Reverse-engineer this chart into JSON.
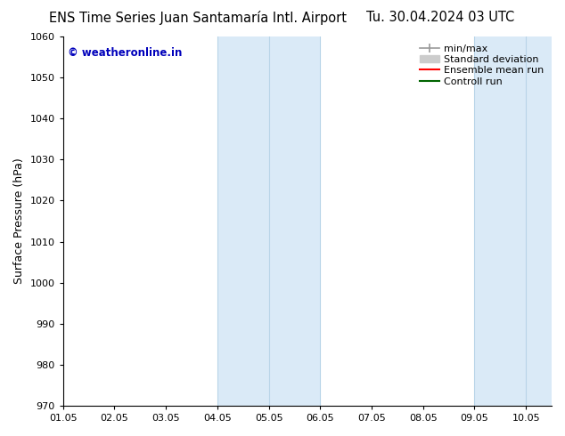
{
  "title_left": "ENS Time Series Juan Santamaría Intl. Airport",
  "title_right": "Tu. 30.04.2024 03 UTC",
  "ylabel": "Surface Pressure (hPa)",
  "ylim": [
    970,
    1060
  ],
  "yticks": [
    970,
    980,
    990,
    1000,
    1010,
    1020,
    1030,
    1040,
    1050,
    1060
  ],
  "xlim": [
    0.0,
    9.5
  ],
  "xtick_positions": [
    0,
    1,
    2,
    3,
    4,
    5,
    6,
    7,
    8,
    9
  ],
  "xtick_labels": [
    "01.05",
    "02.05",
    "03.05",
    "04.05",
    "05.05",
    "06.05",
    "07.05",
    "08.05",
    "09.05",
    "10.05"
  ],
  "shaded_bands": [
    {
      "xmin": 3.0,
      "xmax": 5.0,
      "color": "#daeaf7"
    },
    {
      "xmin": 8.0,
      "xmax": 9.5,
      "color": "#daeaf7"
    }
  ],
  "shaded_band_lines": [
    {
      "x": 3.0
    },
    {
      "x": 4.0
    },
    {
      "x": 5.0
    },
    {
      "x": 8.0
    },
    {
      "x": 9.0
    }
  ],
  "band_line_color": "#b8d4e8",
  "watermark_text": "© weatheronline.in",
  "watermark_color": "#0000bb",
  "background_color": "#ffffff",
  "title_fontsize": 10.5,
  "tick_label_fontsize": 8,
  "ylabel_fontsize": 9,
  "legend_fontsize": 8
}
